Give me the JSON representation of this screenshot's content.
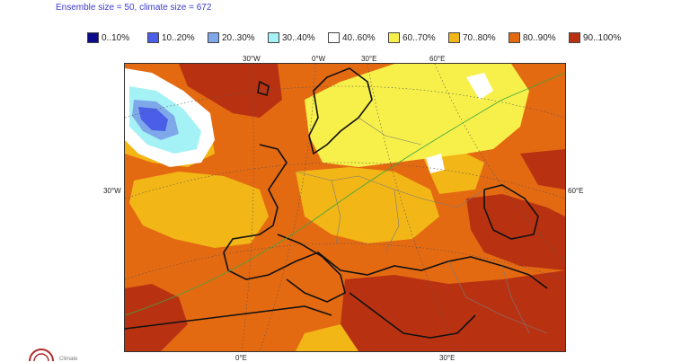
{
  "header": {
    "text": "Ensemble size = 50, climate size = 672"
  },
  "legend": [
    {
      "label": "0..10%",
      "color": "#0b0b8c"
    },
    {
      "label": "10..20%",
      "color": "#4a5ee8"
    },
    {
      "label": "20..30%",
      "color": "#7fa8ea"
    },
    {
      "label": "30..40%",
      "color": "#a4f2f6"
    },
    {
      "label": "40..60%",
      "color": "#ffffff"
    },
    {
      "label": "60..70%",
      "color": "#f7f04a"
    },
    {
      "label": "70..80%",
      "color": "#f2b617"
    },
    {
      "label": "80..90%",
      "color": "#e46a12"
    },
    {
      "label": "90..100%",
      "color": "#b83212"
    }
  ],
  "axes": {
    "top": [
      "30°W",
      "0°W",
      "30°E",
      "60°E"
    ],
    "left": [
      "30°W"
    ],
    "right": [
      "60°E"
    ],
    "bottom": [
      "0°E",
      "30°E"
    ]
  },
  "logo": {
    "text": "Climate"
  }
}
